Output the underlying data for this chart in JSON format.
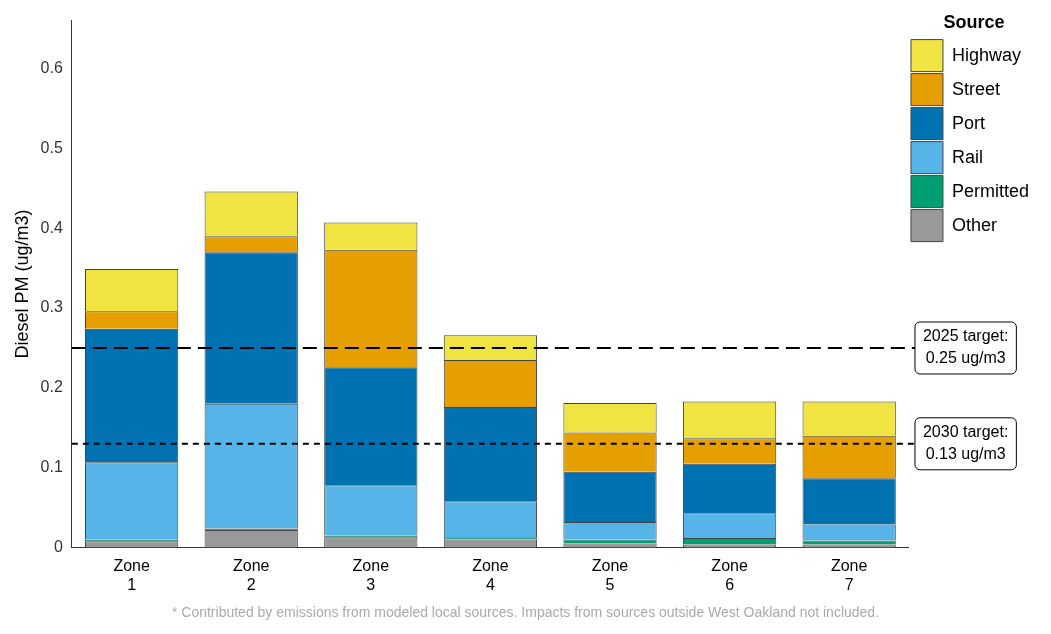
{
  "chart_data": {
    "type": "bar",
    "stacked": true,
    "ylabel": "Diesel PM (ug/m3)",
    "legend_title": "Source",
    "legend": "top right",
    "grid": false,
    "categories": [
      "Zone\n1",
      "Zone\n2",
      "Zone\n3",
      "Zone\n4",
      "Zone\n5",
      "Zone\n6",
      "Zone\n7"
    ],
    "ylim": [
      0,
      0.66
    ],
    "yticks": [
      0,
      0.1,
      0.2,
      0.3,
      0.4,
      0.5,
      0.6
    ],
    "series": [
      {
        "name": "Other",
        "color": "#999999",
        "values": [
          0.008,
          0.022,
          0.013,
          0.01,
          0.005,
          0.004,
          0.004
        ]
      },
      {
        "name": "Permitted",
        "color": "#009e73",
        "values": [
          0.002,
          0.002,
          0.002,
          0.003,
          0.005,
          0.008,
          0.005
        ]
      },
      {
        "name": "Rail",
        "color": "#56b4e9",
        "values": [
          0.097,
          0.156,
          0.063,
          0.045,
          0.022,
          0.031,
          0.02
        ]
      },
      {
        "name": "Port",
        "color": "#0072b2",
        "values": [
          0.167,
          0.19,
          0.148,
          0.118,
          0.063,
          0.062,
          0.058
        ]
      },
      {
        "name": "Street",
        "color": "#e69f00",
        "values": [
          0.022,
          0.02,
          0.147,
          0.059,
          0.049,
          0.032,
          0.053
        ]
      },
      {
        "name": "Highway",
        "color": "#f0e442",
        "values": [
          0.053,
          0.056,
          0.034,
          0.031,
          0.037,
          0.046,
          0.043
        ]
      }
    ],
    "ref_lines": [
      {
        "axis": "y",
        "value": 0.25,
        "label": "2025 target:\n0.25 ug/m3",
        "line_style": "dashed",
        "color": "#000000"
      },
      {
        "axis": "y",
        "value": 0.13,
        "label": "2030 target:\n0.13 ug/m3",
        "line_style": "dotted",
        "color": "#000000"
      }
    ],
    "annotations": [
      "* Contributed by emissions from modeled local sources. Impacts from sources outside West Oakland not included."
    ]
  }
}
